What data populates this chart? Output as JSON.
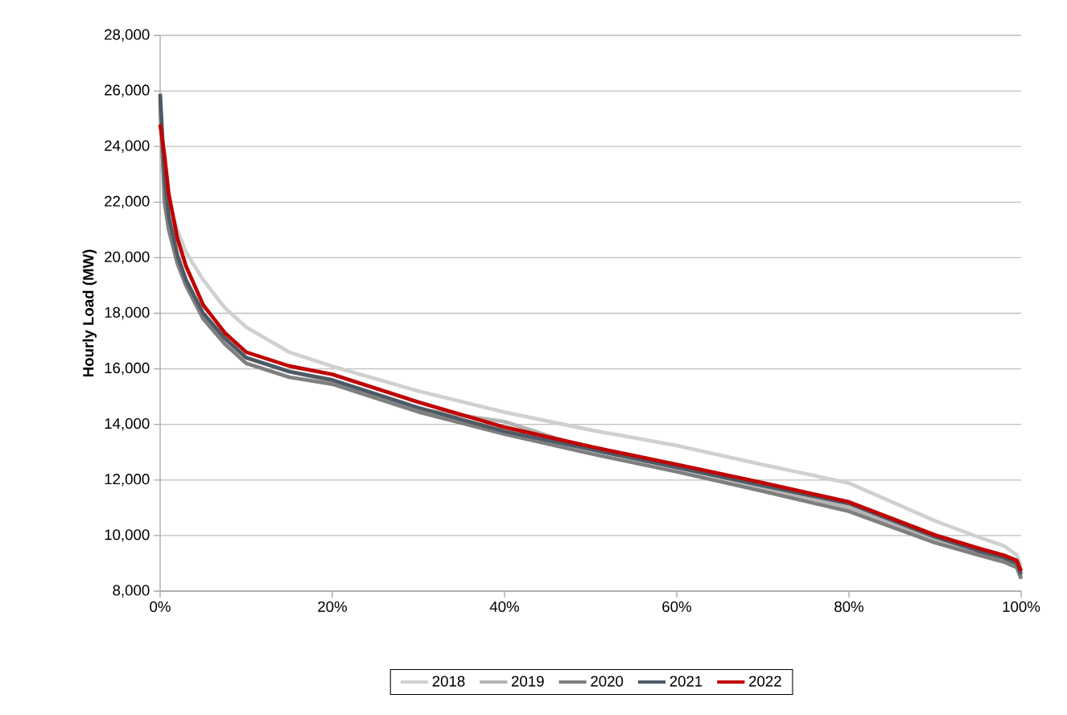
{
  "chart_data": {
    "type": "line",
    "ylabel": "Hourly Load (MW)",
    "x": [
      0,
      0.5,
      1,
      2,
      3,
      5,
      7.5,
      10,
      15,
      20,
      30,
      40,
      50,
      60,
      70,
      80,
      90,
      95,
      98,
      99.5,
      100
    ],
    "series": [
      {
        "name": "2018",
        "color": "#d0d0d0",
        "values": [
          25500,
          23000,
          22000,
          21000,
          20200,
          19200,
          18200,
          17500,
          16600,
          16090,
          15200,
          14440,
          13800,
          13240,
          12550,
          11890,
          10530,
          9950,
          9630,
          9300,
          8900
        ]
      },
      {
        "name": "2019",
        "color": "#b3b3b3",
        "values": [
          25300,
          22500,
          21300,
          20000,
          19200,
          18000,
          17100,
          16400,
          15900,
          15550,
          14550,
          14100,
          13100,
          12450,
          11750,
          11000,
          9850,
          9350,
          9100,
          8900,
          8500
        ]
      },
      {
        "name": "2020",
        "color": "#7f7f7f",
        "values": [
          25800,
          22000,
          21000,
          19800,
          19000,
          17800,
          16900,
          16200,
          15700,
          15450,
          14450,
          13650,
          12950,
          12300,
          11600,
          10870,
          9740,
          9300,
          9050,
          8850,
          8440
        ]
      },
      {
        "name": "2021",
        "color": "#4d5a66",
        "values": [
          25900,
          23000,
          21500,
          20100,
          19200,
          18000,
          17100,
          16400,
          15900,
          15600,
          14600,
          13750,
          13100,
          12450,
          11800,
          11150,
          9950,
          9450,
          9200,
          9000,
          8600
        ]
      },
      {
        "name": "2022",
        "color": "#c00000",
        "values": [
          24800,
          23700,
          22300,
          20700,
          19700,
          18300,
          17300,
          16600,
          16100,
          15800,
          14800,
          13900,
          13200,
          12560,
          11900,
          11210,
          10020,
          9550,
          9290,
          9100,
          8720
        ]
      }
    ],
    "xlim": [
      0,
      100
    ],
    "xticks": [
      {
        "value": 0,
        "label": "0%"
      },
      {
        "value": 20,
        "label": "20%"
      },
      {
        "value": 40,
        "label": "40%"
      },
      {
        "value": 60,
        "label": "60%"
      },
      {
        "value": 80,
        "label": "80%"
      },
      {
        "value": 100,
        "label": "100%"
      }
    ],
    "ylim": [
      8000,
      28000
    ],
    "yticks": [
      {
        "value": 8000,
        "label": "8,000"
      },
      {
        "value": 10000,
        "label": "10,000"
      },
      {
        "value": 12000,
        "label": "12,000"
      },
      {
        "value": 14000,
        "label": "14,000"
      },
      {
        "value": 16000,
        "label": "16,000"
      },
      {
        "value": 18000,
        "label": "18,000"
      },
      {
        "value": 20000,
        "label": "20,000"
      },
      {
        "value": 22000,
        "label": "22,000"
      },
      {
        "value": 24000,
        "label": "24,000"
      },
      {
        "value": 26000,
        "label": "26,000"
      },
      {
        "value": 28000,
        "label": "28,000"
      }
    ],
    "grid": "y",
    "legend": "bottom",
    "marker": "none",
    "line_style": "solid"
  }
}
